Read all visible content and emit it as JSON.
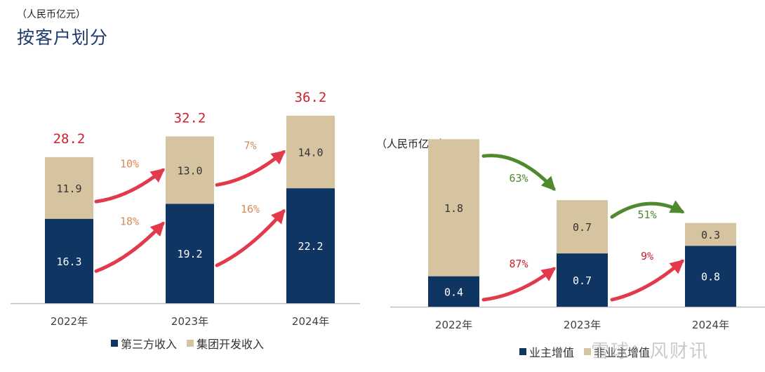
{
  "header": {
    "unit": "（人民币亿元）",
    "title": "按客户划分"
  },
  "right_unit": "（人民币亿元）",
  "watermark": "雪球：风财讯",
  "colors": {
    "navy": "#0f3563",
    "tan": "#d6c4a0",
    "red_text": "#d0202f",
    "arrow_red": "#e23a4c",
    "orange_text": "#d98a55",
    "green": "#4f8a2f",
    "axis": "#bfbfbf"
  },
  "legend_left": [
    {
      "label": "第三方收入",
      "color": "#0f3563"
    },
    {
      "label": "集团开发收入",
      "color": "#d6c4a0"
    }
  ],
  "legend_right": [
    {
      "label": "业主增值",
      "color": "#0f3563"
    },
    {
      "label": "非业主增值",
      "color": "#d6c4a0"
    }
  ],
  "chart_data": [
    {
      "type": "bar",
      "stacked": true,
      "categories": [
        "2022年",
        "2023年",
        "2024年"
      ],
      "series": [
        {
          "name": "第三方收入",
          "values": [
            16.3,
            19.2,
            22.2
          ]
        },
        {
          "name": "集团开发收入",
          "values": [
            11.9,
            13.0,
            14.0
          ]
        }
      ],
      "totals": [
        "28.2",
        "32.2",
        "36.2"
      ],
      "growth_labels": {
        "第三方收入": [
          "18%",
          "16%"
        ],
        "集团开发收入": [
          "10%",
          "7%"
        ]
      }
    },
    {
      "type": "bar",
      "stacked": true,
      "categories": [
        "2022年",
        "2023年",
        "2024年"
      ],
      "series": [
        {
          "name": "业主增值",
          "values": [
            0.4,
            0.7,
            0.8
          ]
        },
        {
          "name": "非业主增值",
          "values": [
            1.8,
            0.7,
            0.3
          ]
        }
      ],
      "change_labels": {
        "业主增值": [
          "87%",
          "9%"
        ],
        "非业主增值": [
          "63%",
          "51%"
        ]
      }
    }
  ]
}
